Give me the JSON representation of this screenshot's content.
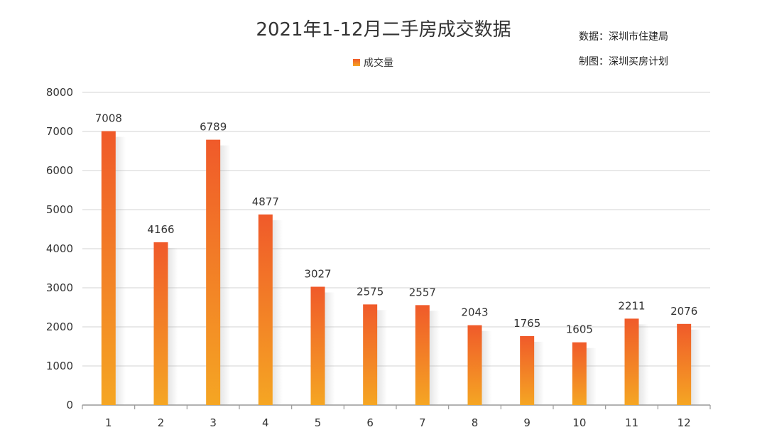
{
  "chart_data": {
    "type": "bar",
    "title": "2021年1-12月二手房成交数据",
    "source_lines": [
      "数据：深圳市住建局",
      "制图：深圳买房计划"
    ],
    "legend": "成交量",
    "legend_position": "top-center",
    "categories": [
      "1",
      "2",
      "3",
      "4",
      "5",
      "6",
      "7",
      "8",
      "9",
      "10",
      "11",
      "12"
    ],
    "series": [
      {
        "name": "成交量",
        "values": [
          7008,
          4166,
          6789,
          4877,
          3027,
          2575,
          2557,
          2043,
          1765,
          1605,
          2211,
          2076
        ]
      }
    ],
    "yticks": [
      "0",
      "1000",
      "2000",
      "3000",
      "4000",
      "5000",
      "6000",
      "7000",
      "8000"
    ],
    "ylim": [
      0,
      8000
    ],
    "grid": true,
    "colors": {
      "bar_top": "#F05A2A",
      "bar_bottom": "#F5A623",
      "grid": "#E2E2E2",
      "axis": "#999999"
    }
  }
}
